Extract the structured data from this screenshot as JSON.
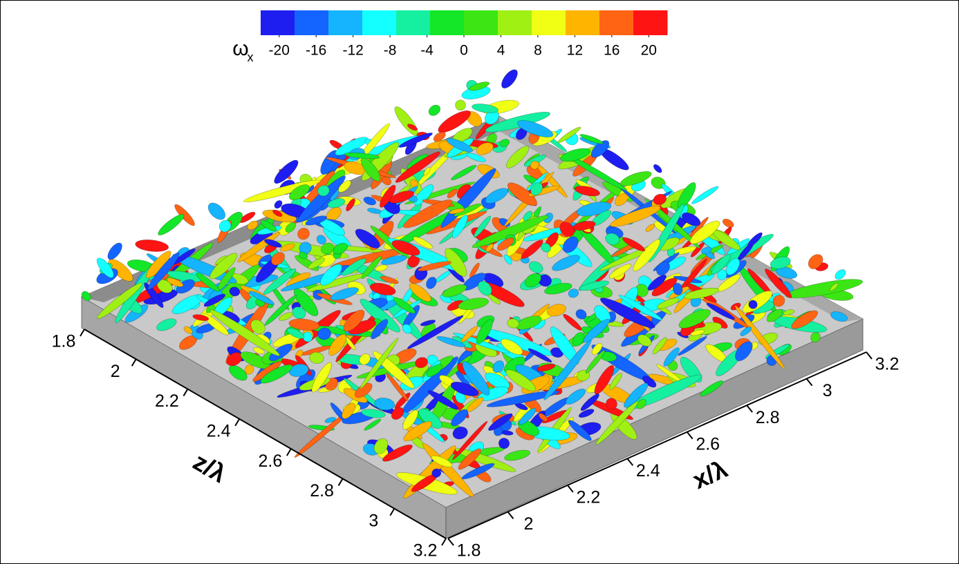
{
  "chart_data": {
    "type": "isosurface",
    "colorbar": {
      "label": "ω",
      "label_sub": "x",
      "clim": [
        -22,
        22
      ],
      "colors": [
        "#1e1ef0",
        "#1464ff",
        "#14b4ff",
        "#14ffff",
        "#14f0a0",
        "#14e628",
        "#3ce614",
        "#a0f014",
        "#f0ff14",
        "#ffb400",
        "#ff6414",
        "#ff1414"
      ],
      "ticks": [
        -20,
        -16,
        -12,
        -8,
        -4,
        0,
        4,
        8,
        12,
        16,
        20
      ]
    },
    "z_axis": {
      "label": "z/λ",
      "lim": [
        1.8,
        3.2
      ],
      "ticks": [
        1.8,
        2,
        2.2,
        2.4,
        2.6,
        2.8,
        3,
        3.2
      ]
    },
    "x_axis": {
      "label": "x/λ",
      "lim": [
        1.8,
        3.2
      ],
      "ticks": [
        1.8,
        2,
        2.2,
        2.4,
        2.6,
        2.8,
        3,
        3.2
      ]
    }
  }
}
